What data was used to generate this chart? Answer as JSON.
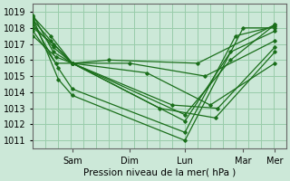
{
  "xlabel": "Pression niveau de la mer( hPa )",
  "ylim": [
    1010.5,
    1019.5
  ],
  "yticks": [
    1011,
    1012,
    1013,
    1014,
    1015,
    1016,
    1017,
    1018,
    1019
  ],
  "xlim": [
    0,
    1
  ],
  "background_color": "#cce8d8",
  "grid_color": "#99ccaa",
  "line_color": "#1a6e1a",
  "day_labels": [
    "Sam",
    "Dim",
    "Lun",
    "Mar",
    "Mer"
  ],
  "day_positions": [
    0.155,
    0.38,
    0.6,
    0.83,
    0.955
  ],
  "minor_grid_count": 20,
  "lines": [
    {
      "x": [
        0.0,
        0.1,
        0.155,
        0.6,
        0.83,
        0.955
      ],
      "y": [
        1018.6,
        1014.8,
        1013.8,
        1011.0,
        1018.0,
        1018.0
      ]
    },
    {
      "x": [
        0.0,
        0.1,
        0.155,
        0.6,
        0.8,
        0.955
      ],
      "y": [
        1018.3,
        1015.5,
        1014.2,
        1011.5,
        1017.5,
        1018.1
      ]
    },
    {
      "x": [
        0.0,
        0.09,
        0.155,
        0.6,
        0.78,
        0.955
      ],
      "y": [
        1017.8,
        1015.8,
        1015.8,
        1012.2,
        1016.5,
        1017.8
      ]
    },
    {
      "x": [
        0.0,
        0.09,
        0.155,
        0.6,
        0.78,
        0.955
      ],
      "y": [
        1017.5,
        1016.2,
        1015.8,
        1012.6,
        1016.0,
        1018.2
      ]
    },
    {
      "x": [
        0.0,
        0.08,
        0.155,
        0.55,
        0.73,
        0.955
      ],
      "y": [
        1018.8,
        1016.5,
        1015.8,
        1013.2,
        1013.0,
        1016.8
      ]
    },
    {
      "x": [
        0.0,
        0.08,
        0.155,
        0.5,
        0.72,
        0.955
      ],
      "y": [
        1018.2,
        1016.8,
        1015.8,
        1013.0,
        1012.4,
        1016.5
      ]
    },
    {
      "x": [
        0.0,
        0.08,
        0.155,
        0.45,
        0.7,
        0.955
      ],
      "y": [
        1018.0,
        1017.0,
        1015.8,
        1015.2,
        1013.2,
        1015.8
      ]
    },
    {
      "x": [
        0.0,
        0.07,
        0.155,
        0.38,
        0.68,
        0.955
      ],
      "y": [
        1018.5,
        1017.2,
        1015.8,
        1015.8,
        1015.0,
        1017.2
      ]
    },
    {
      "x": [
        0.0,
        0.07,
        0.155,
        0.3,
        0.65,
        0.955
      ],
      "y": [
        1018.7,
        1017.5,
        1015.8,
        1016.0,
        1015.8,
        1018.2
      ]
    }
  ]
}
